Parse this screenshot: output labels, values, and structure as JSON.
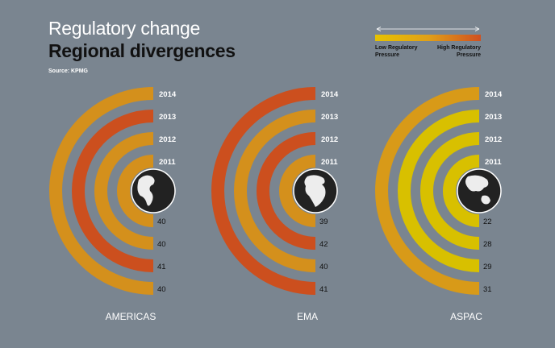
{
  "header": {
    "title": "Regulatory change",
    "subtitle": "Regional divergences",
    "source": "Source: KPMG"
  },
  "legend": {
    "low_label": "Low Regulatory\nPressure",
    "high_label": "High Regulatory\nPressure",
    "gradient": [
      "#e6c200",
      "#e0a018",
      "#d05020"
    ]
  },
  "colors": {
    "background": "#7a8590",
    "pressure_scale": {
      "22": "#d8c000",
      "28": "#d8c000",
      "29": "#d8c000",
      "31": "#d89a18",
      "39": "#d4901c",
      "40": "#d4901c",
      "41": "#cc4f1e",
      "42": "#cc4f1e"
    },
    "globe": "#222222",
    "globe_outline": "#ffffff"
  },
  "chart_data": [
    {
      "type": "radial-bar",
      "region": "AMERICAS",
      "years": [
        "2011",
        "2012",
        "2013",
        "2014"
      ],
      "values": [
        40,
        40,
        41,
        40
      ]
    },
    {
      "type": "radial-bar",
      "region": "EMA",
      "years": [
        "2011",
        "2012",
        "2013",
        "2014"
      ],
      "values": [
        39,
        42,
        40,
        41
      ]
    },
    {
      "type": "radial-bar",
      "region": "ASPAC",
      "years": [
        "2011",
        "2012",
        "2013",
        "2014"
      ],
      "values": [
        22,
        28,
        29,
        31
      ]
    }
  ]
}
